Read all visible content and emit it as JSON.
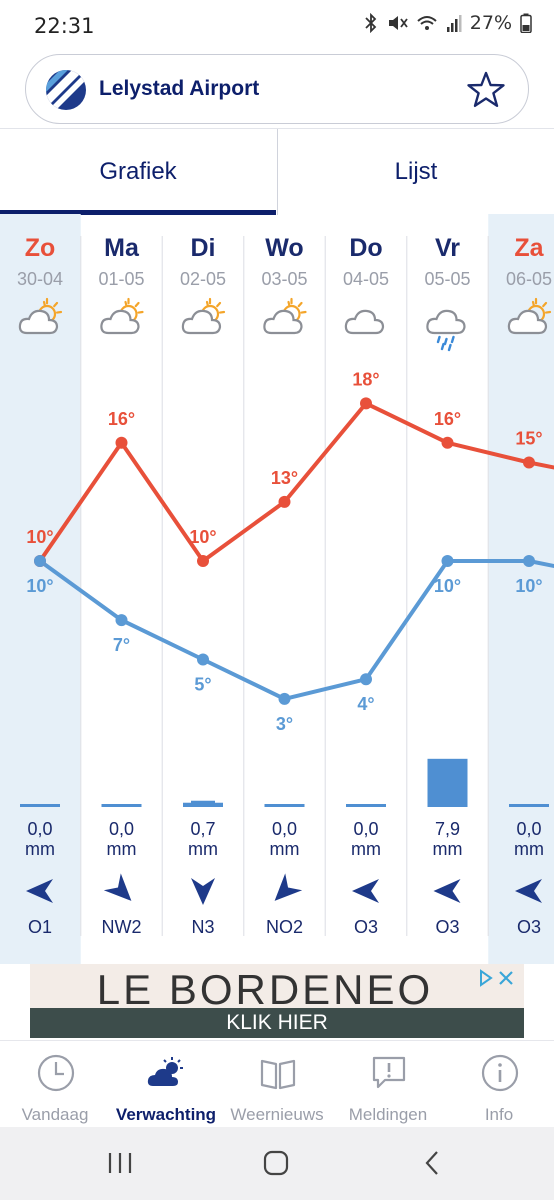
{
  "status_bar": {
    "time": "22:31",
    "battery": "27%"
  },
  "location": {
    "name": "Lelystad Airport",
    "favorite_icon": "star-outline-icon"
  },
  "tabs": [
    {
      "label": "Grafiek",
      "active": true
    },
    {
      "label": "Lijst",
      "active": false
    }
  ],
  "forecast": {
    "days": [
      {
        "day": "Zo",
        "date": "30-04",
        "weekend": true,
        "icon": "partly-sunny-icon",
        "max": "10°",
        "min": "10°",
        "precip_value": "0,0",
        "precip_unit": "mm",
        "precip_mm": 0.0,
        "wind_dir": "O1",
        "wind_arrow": "from-east"
      },
      {
        "day": "Ma",
        "date": "01-05",
        "weekend": false,
        "icon": "partly-sunny-icon",
        "max": "16°",
        "min": "7°",
        "precip_value": "0,0",
        "precip_unit": "mm",
        "precip_mm": 0.0,
        "wind_dir": "NW2",
        "wind_arrow": "from-northwest"
      },
      {
        "day": "Di",
        "date": "02-05",
        "weekend": false,
        "icon": "partly-sunny-icon",
        "max": "10°",
        "min": "5°",
        "precip_value": "0,7",
        "precip_unit": "mm",
        "precip_mm": 0.7,
        "wind_dir": "N3",
        "wind_arrow": "from-north"
      },
      {
        "day": "Wo",
        "date": "03-05",
        "weekend": false,
        "icon": "partly-sunny-icon",
        "max": "13°",
        "min": "3°",
        "precip_value": "0,0",
        "precip_unit": "mm",
        "precip_mm": 0.0,
        "wind_dir": "NO2",
        "wind_arrow": "from-northeast"
      },
      {
        "day": "Do",
        "date": "04-05",
        "weekend": false,
        "icon": "cloudy-icon",
        "max": "18°",
        "min": "4°",
        "precip_value": "0,0",
        "precip_unit": "mm",
        "precip_mm": 0.0,
        "wind_dir": "O3",
        "wind_arrow": "from-east"
      },
      {
        "day": "Vr",
        "date": "05-05",
        "weekend": false,
        "icon": "rain-icon",
        "max": "16°",
        "min": "10°",
        "precip_value": "7,9",
        "precip_unit": "mm",
        "precip_mm": 7.9,
        "wind_dir": "O3",
        "wind_arrow": "from-east"
      },
      {
        "day": "Za",
        "date": "06-05",
        "weekend": true,
        "icon": "partly-sunny-icon",
        "max": "15°",
        "min": "10°",
        "precip_value": "0,0",
        "precip_unit": "mm",
        "precip_mm": 0.0,
        "wind_dir": "O3",
        "wind_arrow": "from-east"
      }
    ],
    "colors": {
      "max_line": "#e8503a",
      "min_line": "#5b9ad5",
      "weekday_text": "#1a2a6c",
      "weekend_text": "#e8503a",
      "weekend_bg": "#e6f0f8",
      "precip": "#4f8fd2"
    }
  },
  "chart_data": {
    "type": "line",
    "categories": [
      "Zo",
      "Ma",
      "Di",
      "Wo",
      "Do",
      "Vr",
      "Za"
    ],
    "series": [
      {
        "values": [
          10,
          16,
          10,
          13,
          18,
          16,
          15
        ]
      },
      {
        "values": [
          10,
          7,
          5,
          3,
          4,
          10,
          10
        ]
      }
    ]
  },
  "ad": {
    "title": "LE BORDENEO",
    "cta": "KLIK HIER",
    "choices_icon": "adchoices-icon"
  },
  "bottom_nav": [
    {
      "label": "Vandaag",
      "icon": "clock-icon",
      "active": false
    },
    {
      "label": "Verwachting",
      "icon": "cloud-sun-icon",
      "active": true
    },
    {
      "label": "Weernieuws",
      "icon": "book-icon",
      "active": false
    },
    {
      "label": "Meldingen",
      "icon": "alert-bubble-icon",
      "active": false
    },
    {
      "label": "Info",
      "icon": "info-icon",
      "active": false
    }
  ]
}
